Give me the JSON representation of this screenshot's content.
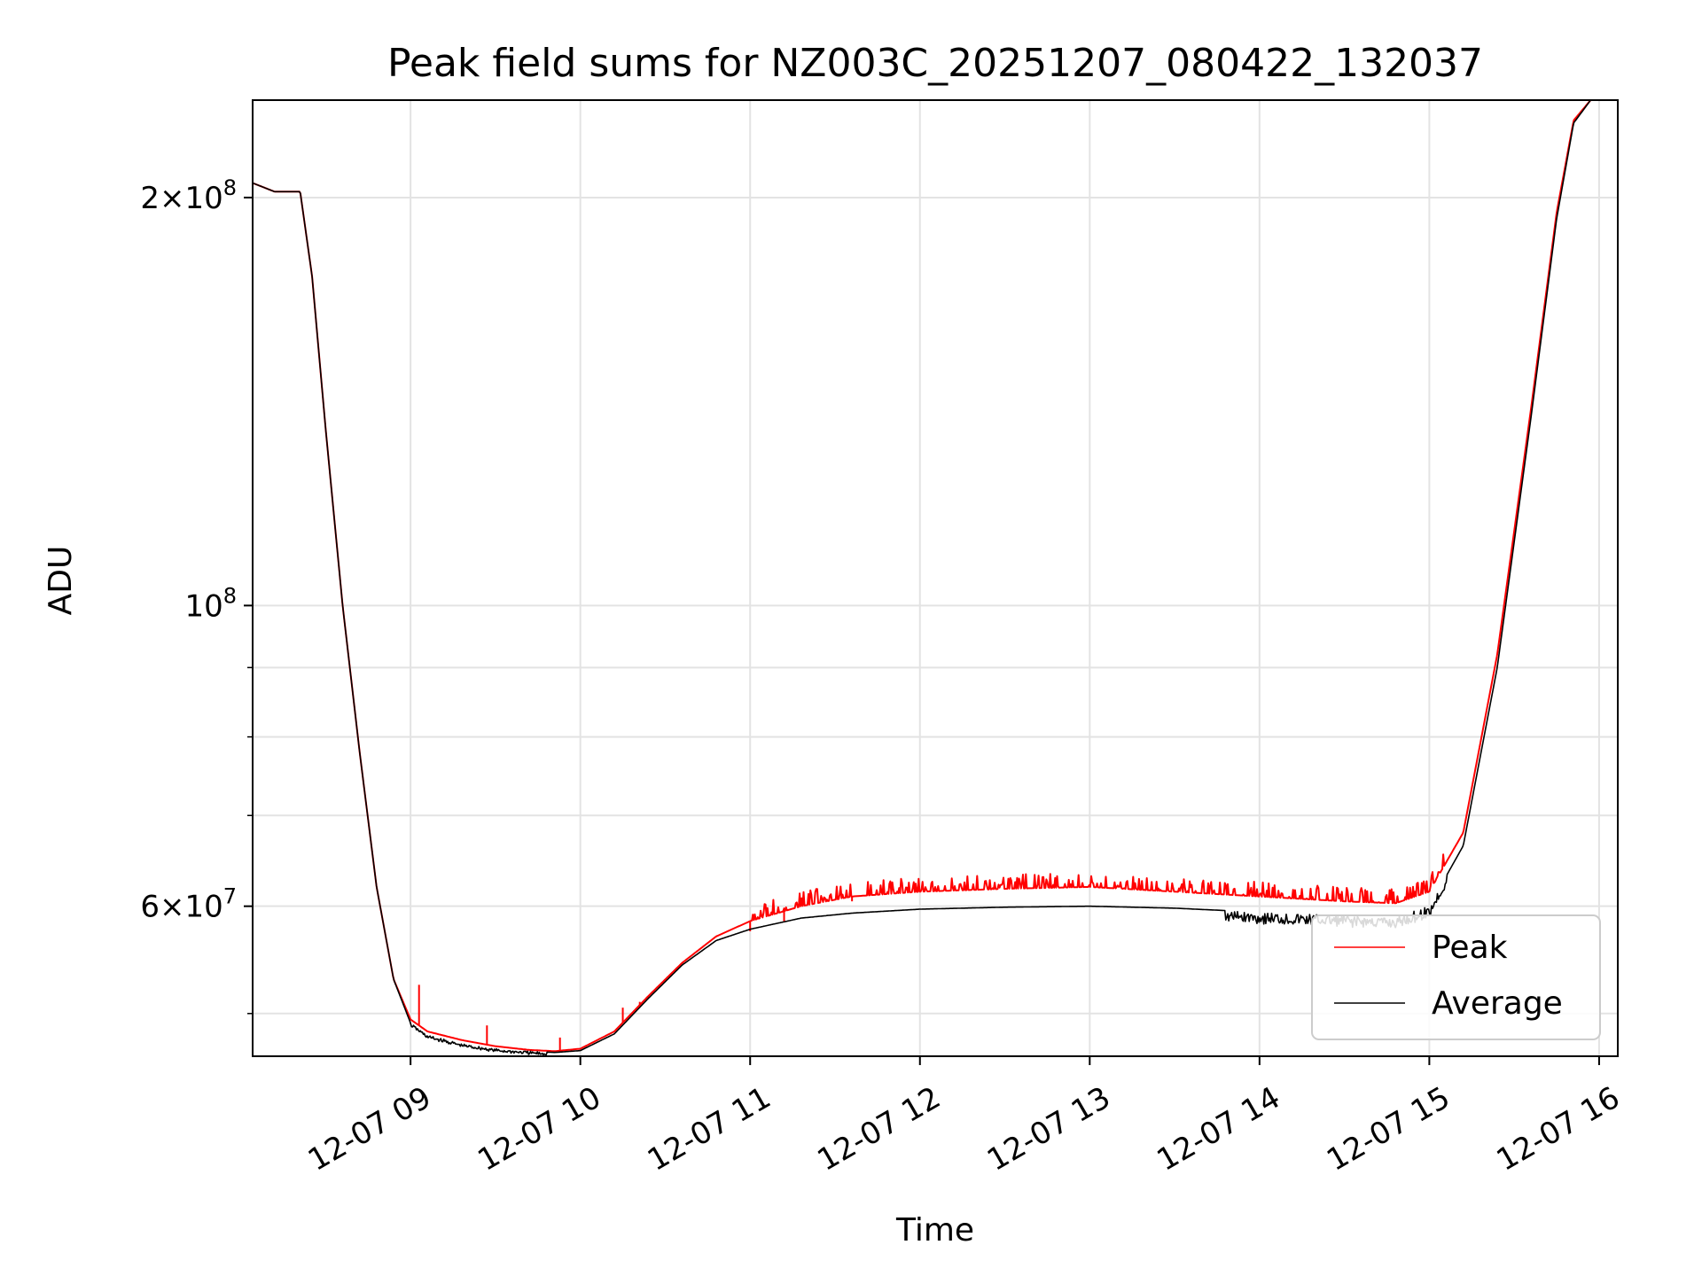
{
  "chart_data": {
    "type": "line",
    "title": "Peak field sums for NZ003C_20251207_080422_132037",
    "xlabel": "Time",
    "ylabel": "ADU",
    "yscale": "log",
    "xlim": [
      8.07,
      16.11
    ],
    "ylim": [
      46500000,
      236000000
    ],
    "x_ticks": [
      {
        "value": 9,
        "label": "12-07 09"
      },
      {
        "value": 10,
        "label": "12-07 10"
      },
      {
        "value": 11,
        "label": "12-07 11"
      },
      {
        "value": 12,
        "label": "12-07 12"
      },
      {
        "value": 13,
        "label": "12-07 13"
      },
      {
        "value": 14,
        "label": "12-07 14"
      },
      {
        "value": 15,
        "label": "12-07 15"
      },
      {
        "value": 16,
        "label": "12-07 16"
      }
    ],
    "y_major_ticks": [
      {
        "value": 60000000,
        "base": "6",
        "times": "×",
        "pow": "10",
        "exp": "7"
      },
      {
        "value": 100000000,
        "base": "",
        "times": "",
        "pow": "10",
        "exp": "8"
      },
      {
        "value": 200000000,
        "base": "2",
        "times": "×",
        "pow": "10",
        "exp": "8"
      }
    ],
    "y_minor_ticks": [
      50000000,
      70000000,
      80000000,
      90000000
    ],
    "grid": true,
    "legend_position": "lower-right",
    "series": [
      {
        "name": "Peak",
        "color": "#ff0000",
        "x": [
          8.07,
          8.2,
          8.35,
          8.42,
          8.5,
          8.6,
          8.7,
          8.8,
          8.9,
          9.0,
          9.1,
          9.3,
          9.5,
          9.7,
          9.85,
          10.0,
          10.2,
          10.4,
          10.6,
          10.8,
          11.0,
          11.3,
          11.6,
          12.0,
          12.5,
          13.0,
          13.5,
          14.0,
          14.5,
          14.8,
          15.0,
          15.2,
          15.4,
          15.6,
          15.75,
          15.85,
          15.95,
          16.11
        ],
        "y": [
          205000000,
          202000000,
          202000000,
          175000000,
          135000000,
          100000000,
          78000000,
          62000000,
          53000000,
          49500000,
          48500000,
          47800000,
          47300000,
          47000000,
          46900000,
          47100000,
          48500000,
          51500000,
          54500000,
          57000000,
          58500000,
          60000000,
          61000000,
          61500000,
          61800000,
          62000000,
          61500000,
          61000000,
          60500000,
          60300000,
          61500000,
          68000000,
          92000000,
          140000000,
          195000000,
          228000000,
          236000000,
          236000000
        ],
        "spikes": [
          [
            9.05,
            52500000
          ],
          [
            9.45,
            49000000
          ],
          [
            9.88,
            48000000
          ],
          [
            10.25,
            50500000
          ],
          [
            10.35,
            51000000
          ],
          [
            11.0,
            57500000
          ],
          [
            11.2,
            58500000
          ],
          [
            11.6,
            60500000
          ]
        ]
      },
      {
        "name": "Average",
        "color": "#000000",
        "x": [
          8.07,
          8.2,
          8.35,
          8.42,
          8.5,
          8.6,
          8.7,
          8.8,
          8.9,
          9.0,
          9.1,
          9.3,
          9.5,
          9.7,
          9.85,
          10.0,
          10.2,
          10.4,
          10.6,
          10.8,
          11.0,
          11.3,
          11.6,
          12.0,
          12.5,
          13.0,
          13.5,
          14.0,
          14.5,
          14.8,
          15.0,
          15.2,
          15.4,
          15.6,
          15.75,
          15.85,
          15.95,
          16.11
        ],
        "y": [
          205000000,
          202000000,
          202000000,
          175000000,
          135000000,
          100000000,
          78000000,
          62000000,
          53000000,
          49200000,
          48200000,
          47500000,
          47100000,
          46900000,
          46800000,
          46950000,
          48300000,
          51300000,
          54300000,
          56600000,
          57700000,
          58800000,
          59300000,
          59700000,
          59900000,
          60000000,
          59800000,
          59400000,
          59100000,
          58900000,
          60000000,
          66500000,
          90000000,
          138000000,
          193000000,
          227000000,
          236000000,
          236000000
        ]
      }
    ]
  }
}
